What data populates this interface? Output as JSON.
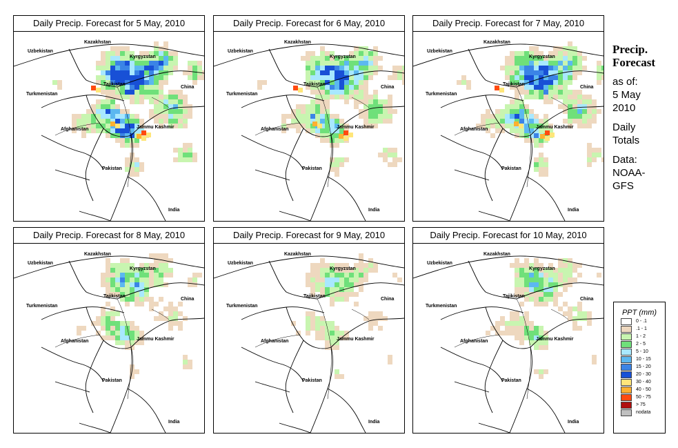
{
  "maps": [
    {
      "title": "Daily Precip. Forecast for  5 May, 2010",
      "intensity": 1.0
    },
    {
      "title": "Daily Precip. Forecast for  6 May, 2010",
      "intensity": 0.8
    },
    {
      "title": "Daily Precip. Forecast for  7 May, 2010",
      "intensity": 0.85
    },
    {
      "title": "Daily Precip. Forecast for  8 May, 2010",
      "intensity": 0.55
    },
    {
      "title": "Daily Precip. Forecast for  9 May, 2010",
      "intensity": 0.45
    },
    {
      "title": "Daily Precip. Forecast for  10 May, 2010",
      "intensity": 0.5
    }
  ],
  "place_labels": {
    "kazakhstan": "Kazakhstan",
    "uzbekistan": "Uzbekistan",
    "kyrgyzstan": "Kyrgyzstan",
    "tajikistan": "Tajikistan",
    "turkmenistan": "Turkmenistan",
    "china": "China",
    "afghanistan": "Afghanistan",
    "jammu_kashmir": "Jammu Kashmir",
    "pakistan": "Pakistan",
    "india": "India"
  },
  "sidebar": {
    "title_line1": "Precip.",
    "title_line2": "Forecast",
    "asof_line1": "as of:",
    "asof_line2": "5 May",
    "asof_line3": "2010",
    "daily_line1": "Daily",
    "daily_line2": "Totals",
    "data_line1": "Data:",
    "data_line2": "NOAA-",
    "data_line3": "GFS"
  },
  "legend": {
    "title": "PPT (mm)",
    "items": [
      {
        "label": "0 - .1",
        "color": "#ffffff"
      },
      {
        "label": ".1 - 1",
        "color": "#eed8bf"
      },
      {
        "label": "1 - 2",
        "color": "#c8f5b0"
      },
      {
        "label": "2 - 5",
        "color": "#6fe07a"
      },
      {
        "label": "5 - 10",
        "color": "#a8e8ff"
      },
      {
        "label": "10 - 15",
        "color": "#5cb8f0"
      },
      {
        "label": "15 - 20",
        "color": "#3b84e6"
      },
      {
        "label": "20 - 30",
        "color": "#1850d6"
      },
      {
        "label": "30 - 40",
        "color": "#ffe67a"
      },
      {
        "label": "40 - 50",
        "color": "#ffb030"
      },
      {
        "label": "50 - 75",
        "color": "#ff4a10"
      },
      {
        "label": "> 75",
        "color": "#b01010"
      },
      {
        "label": "nodata",
        "color": "#c0c0c0"
      }
    ]
  }
}
